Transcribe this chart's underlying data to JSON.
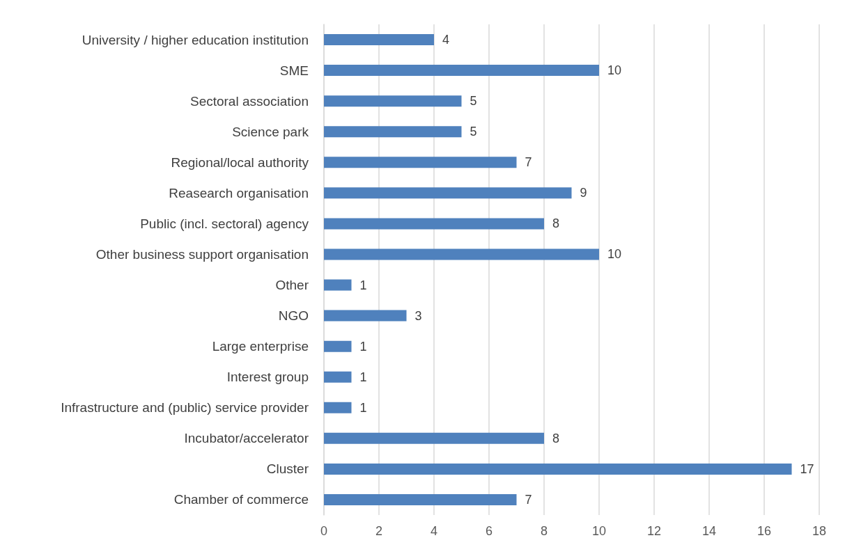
{
  "chart_data": {
    "type": "bar",
    "orientation": "horizontal",
    "categories": [
      "University / higher education institution",
      "SME",
      "Sectoral association",
      "Science park",
      "Regional/local authority",
      "Reasearch organisation",
      "Public (incl. sectoral) agency",
      "Other business support organisation",
      "Other",
      "NGO",
      "Large enterprise",
      "Interest group",
      "Infrastructure and (public) service provider",
      "Incubator/accelerator",
      "Cluster",
      "Chamber of commerce"
    ],
    "values": [
      4,
      10,
      5,
      5,
      7,
      9,
      8,
      10,
      1,
      3,
      1,
      1,
      1,
      8,
      17,
      7
    ],
    "color": "#4f81bd",
    "xlim": [
      0,
      18
    ],
    "xticks": [
      0,
      2,
      4,
      6,
      8,
      10,
      12,
      14,
      16,
      18
    ],
    "grid": "x",
    "data_labels": true
  }
}
